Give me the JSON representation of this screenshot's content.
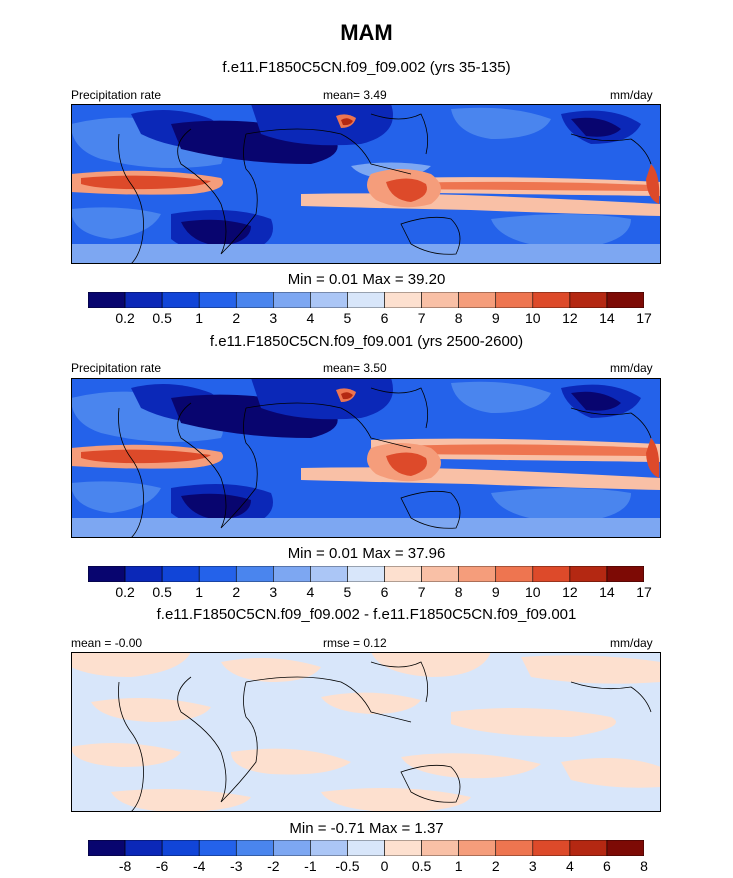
{
  "title": "MAM",
  "units": "mm/day",
  "panels": [
    {
      "title": "f.e11.F1850C5CN.f09_f09.002 (yrs 35-135)",
      "left_label": "Precipitation rate",
      "center_label": "mean=   3.49",
      "right_label": "mm/day",
      "stats": "Min =   0.01 Max =  39.20",
      "palette": "abs"
    },
    {
      "title": "f.e11.F1850C5CN.f09_f09.001 (yrs 2500-2600)",
      "left_label": "Precipitation rate",
      "center_label": "mean=   3.50",
      "right_label": "mm/day",
      "stats": "Min =   0.01 Max =  37.96",
      "palette": "abs"
    },
    {
      "title": "f.e11.F1850C5CN.f09_f09.002 - f.e11.F1850C5CN.f09_f09.001",
      "left_label": "mean =  -0.00",
      "center_label": "rmse =   0.12",
      "right_label": "mm/day",
      "stats": "Min =  -0.71 Max =   1.37",
      "palette": "diff"
    }
  ],
  "chart_data": [
    {
      "type": "heatmap",
      "title": "f.e11.F1850C5CN.f09_f09.002 (yrs 35-135)",
      "variable": "Precipitation rate",
      "units": "mm/day",
      "mean": 3.49,
      "min": 0.01,
      "max": 39.2,
      "colorbar_levels": [
        "0.2",
        "0.5",
        "1",
        "2",
        "3",
        "4",
        "5",
        "6",
        "7",
        "8",
        "9",
        "10",
        "12",
        "14",
        "17"
      ]
    },
    {
      "type": "heatmap",
      "title": "f.e11.F1850C5CN.f09_f09.001 (yrs 2500-2600)",
      "variable": "Precipitation rate",
      "units": "mm/day",
      "mean": 3.5,
      "min": 0.01,
      "max": 37.96,
      "colorbar_levels": [
        "0.2",
        "0.5",
        "1",
        "2",
        "3",
        "4",
        "5",
        "6",
        "7",
        "8",
        "9",
        "10",
        "12",
        "14",
        "17"
      ]
    },
    {
      "type": "heatmap",
      "title": "f.e11.F1850C5CN.f09_f09.002 - f.e11.F1850C5CN.f09_f09.001",
      "units": "mm/day",
      "mean": -0.0,
      "rmse": 0.12,
      "min": -0.71,
      "max": 1.37,
      "colorbar_levels": [
        "-8",
        "-6",
        "-4",
        "-3",
        "-2",
        "-1",
        "-0.5",
        "0",
        "0.5",
        "1",
        "2",
        "3",
        "4",
        "6",
        "8"
      ]
    }
  ],
  "colors": {
    "abs_palette": [
      "#08056f",
      "#0b28b8",
      "#1145d8",
      "#2462ea",
      "#4a85ee",
      "#7da7f2",
      "#abc6f6",
      "#d8e6fa",
      "#fde0cf",
      "#f9c0a6",
      "#f59d7b",
      "#ee7550",
      "#dd4a2a",
      "#b42812",
      "#7d0a05"
    ],
    "diff_palette": [
      "#08056f",
      "#0b28b8",
      "#1145d8",
      "#2462ea",
      "#4a85ee",
      "#7da7f2",
      "#abc6f6",
      "#d8e6fa",
      "#fde0cf",
      "#f9c0a6",
      "#f59d7b",
      "#ee7550",
      "#dd4a2a",
      "#b42812",
      "#7d0a05"
    ]
  }
}
